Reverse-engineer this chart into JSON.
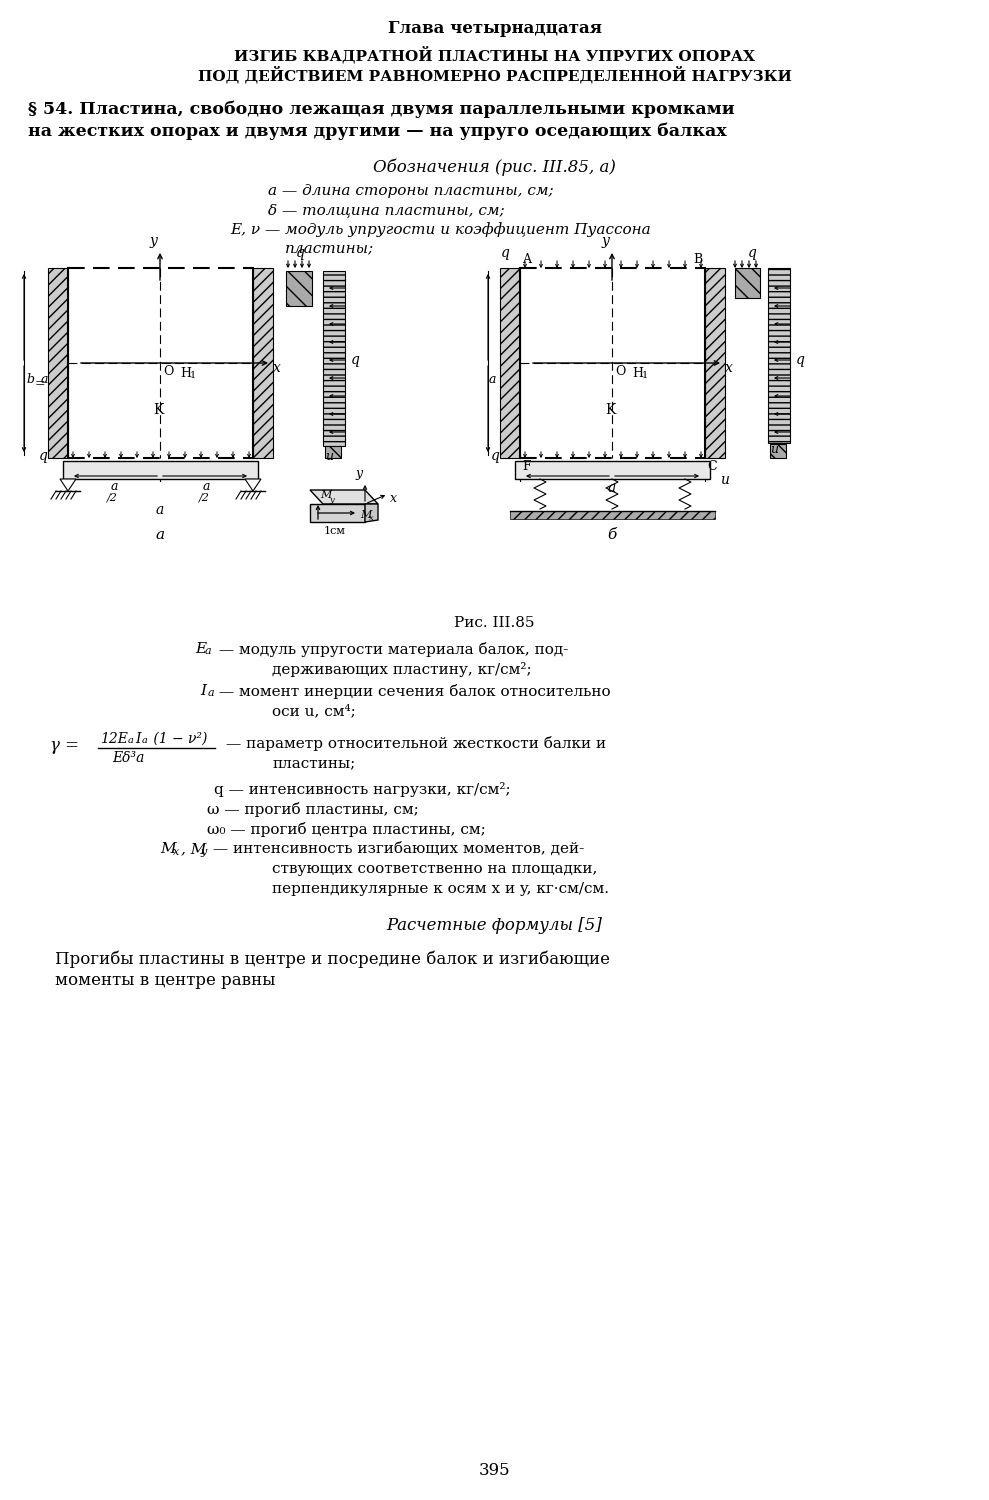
{
  "title_chapter": "Глава четырнадцатая",
  "title_main1": "ИЗГИБ КВАДРАТНОЙ ПЛАСТИНЫ НА УПРУГИХ ОПОРАХ",
  "title_main2": "ПОД ДЕЙСТВИЕМ РАВНОМЕРНО РАСПРЕДЕЛЕННОЙ НАГРУЗКИ",
  "section_title1": "§ 54. Пластина, свободно лежащая двумя параллельными кромками",
  "section_title2": "на жестких опорах и двумя другими — на упруго оседающих балках",
  "oboznacheniya": "Обозначения (рис. III.85, а)",
  "notation1": "а — длина стороны пластины, см;",
  "notation2": "δ — толщина пластины, см;",
  "notation3": "E, ν — модуль упругости и коэффициент Пуассона",
  "notation3b": "пластины;",
  "fig_caption": "Рис. III.85",
  "ea_line1": " — модуль упругости материала балок, под-",
  "ea_line2": "держивающих пластину, кг/см²;",
  "ia_line1": " — момент инерции сечения балок относительно",
  "ia_line2": "оси u, см⁴;",
  "gamma_line1": "— параметр относительной жесткости балки и",
  "gamma_line2": "пластины;",
  "q_line": "q — интенсивность нагрузки, кг/см²;",
  "w_line": "ω — прогиб пластины, см;",
  "w0_line": "ω₀ — прогиб центра пластины, см;",
  "mx_line1": " — интенсивность изгибающих моментов, дей-",
  "mx_line2": "ствующих соответственно на площадки,",
  "mx_line3": "перпендикулярные к осям x и y, кг·см/см.",
  "raschet": "Расчетные формулы [5]",
  "text_bottom1": "Прогибы пластины в центре и посредине балок и изгибающие",
  "text_bottom2": "моменты в центре равны",
  "page_num": "395",
  "bg_color": "#ffffff"
}
